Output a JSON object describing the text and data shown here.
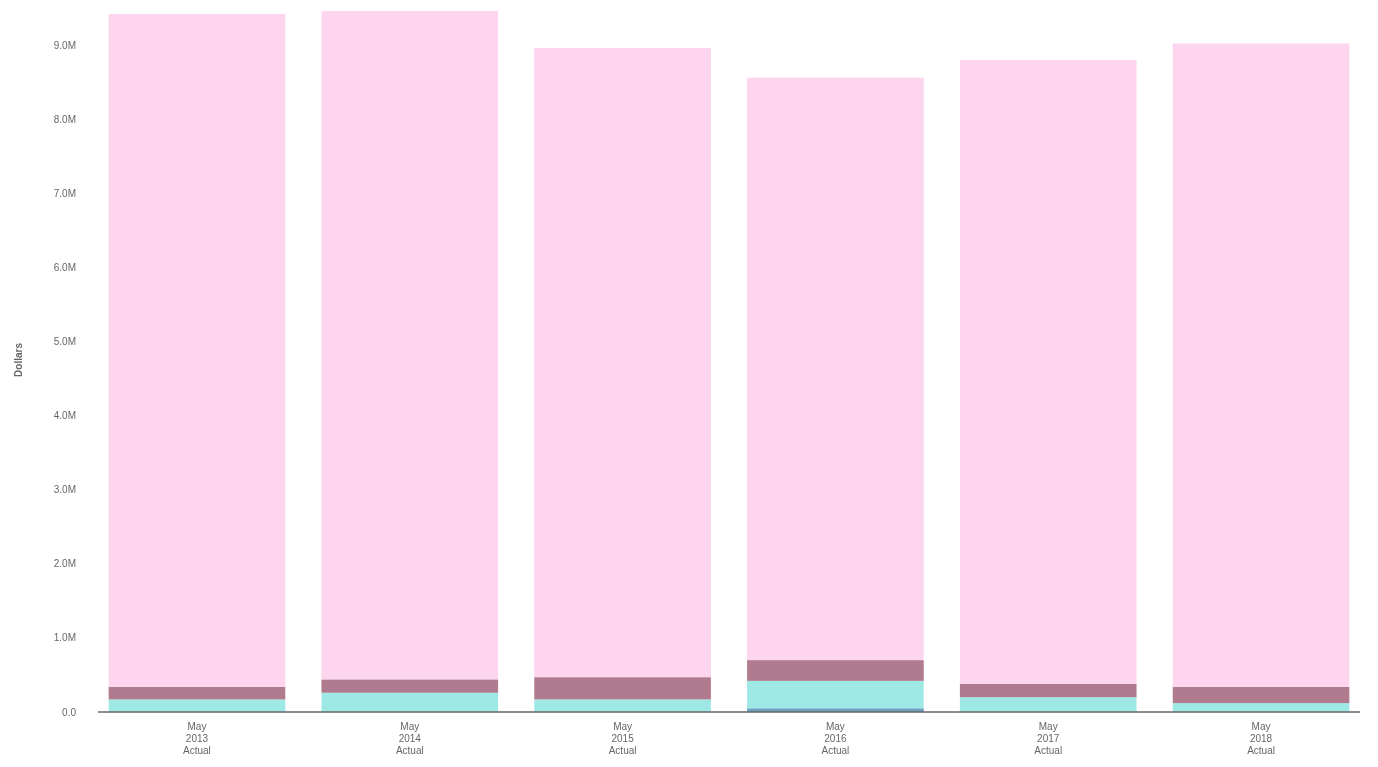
{
  "chart_data": {
    "type": "bar",
    "stacked": true,
    "ylabel": "Dollars",
    "categories": [
      "May\n2013\nActual",
      "May\n2014\nActual",
      "May\n2015\nActual",
      "May\n2016\nActual",
      "May\n2017\nActual",
      "May\n2018\nActual"
    ],
    "series": [
      {
        "color": "#6a9fc0",
        "values": [
          null,
          null,
          null,
          0.05,
          null,
          null
        ]
      },
      {
        "color": "#9ee8e6",
        "values": [
          0.17,
          0.26,
          0.17,
          0.37,
          0.2,
          0.12
        ]
      },
      {
        "color": "#b07a8f",
        "values": [
          0.17,
          0.18,
          0.3,
          0.28,
          0.18,
          0.22
        ]
      },
      {
        "color": "#fdd5ef",
        "values": [
          9.08,
          9.02,
          8.49,
          7.86,
          8.42,
          8.68
        ]
      }
    ],
    "ylim": [
      0,
      9.5
    ],
    "yticks": [
      {
        "value": 0,
        "label": "0.0"
      },
      {
        "value": 1,
        "label": "1.0M"
      },
      {
        "value": 2,
        "label": "2.0M"
      },
      {
        "value": 3,
        "label": "3.0M"
      },
      {
        "value": 4,
        "label": "4.0M"
      },
      {
        "value": 5,
        "label": "5.0M"
      },
      {
        "value": 6,
        "label": "6.0M"
      },
      {
        "value": 7,
        "label": "7.0M"
      },
      {
        "value": 8,
        "label": "8.0M"
      },
      {
        "value": 9,
        "label": "9.0M"
      }
    ],
    "grid": false
  }
}
